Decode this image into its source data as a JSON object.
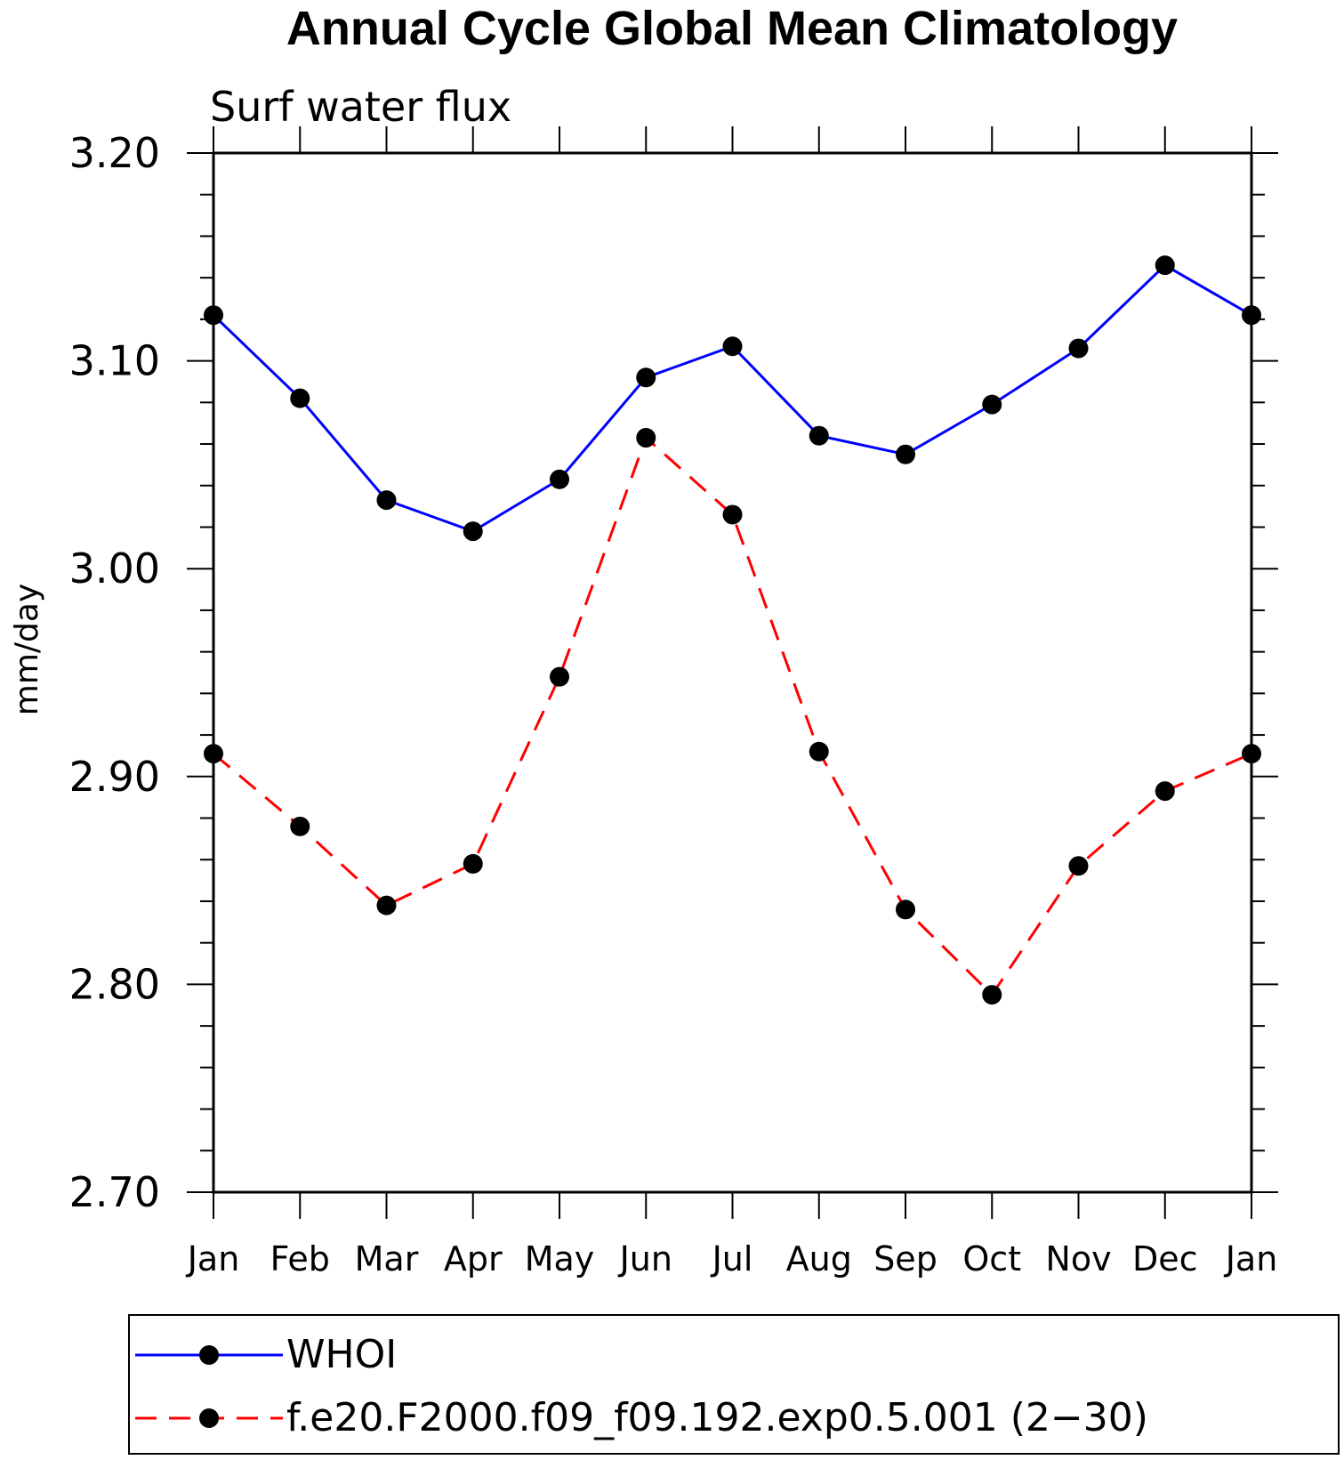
{
  "chart_data": {
    "type": "line",
    "title": "Annual Cycle Global Mean Climatology",
    "subtitle": "Surf water flux",
    "ylabel": "mm/day",
    "xlabel": "",
    "ylim": [
      2.7,
      3.2
    ],
    "yticks": [
      "2.70",
      "2.80",
      "2.90",
      "3.00",
      "3.10",
      "3.20"
    ],
    "categories": [
      "Jan",
      "Feb",
      "Mar",
      "Apr",
      "May",
      "Jun",
      "Jul",
      "Aug",
      "Sep",
      "Oct",
      "Nov",
      "Dec",
      "Jan"
    ],
    "series": [
      {
        "name": "WHOI",
        "color": "#0000ff",
        "line_style": "solid",
        "marker": "filled-circle",
        "values": [
          3.122,
          3.082,
          3.033,
          3.018,
          3.043,
          3.092,
          3.107,
          3.064,
          3.055,
          3.079,
          3.106,
          3.146,
          3.122
        ]
      },
      {
        "name": "f.e20.F2000.f09_f09.192.exp0.5.001 (2−30)",
        "color": "#ff0000",
        "line_style": "dashed",
        "marker": "filled-circle",
        "values": [
          2.911,
          2.876,
          2.838,
          2.858,
          2.948,
          3.063,
          3.026,
          2.912,
          2.836,
          2.795,
          2.857,
          2.893,
          2.911
        ]
      }
    ],
    "legend_position": "bottom",
    "grid": false
  }
}
